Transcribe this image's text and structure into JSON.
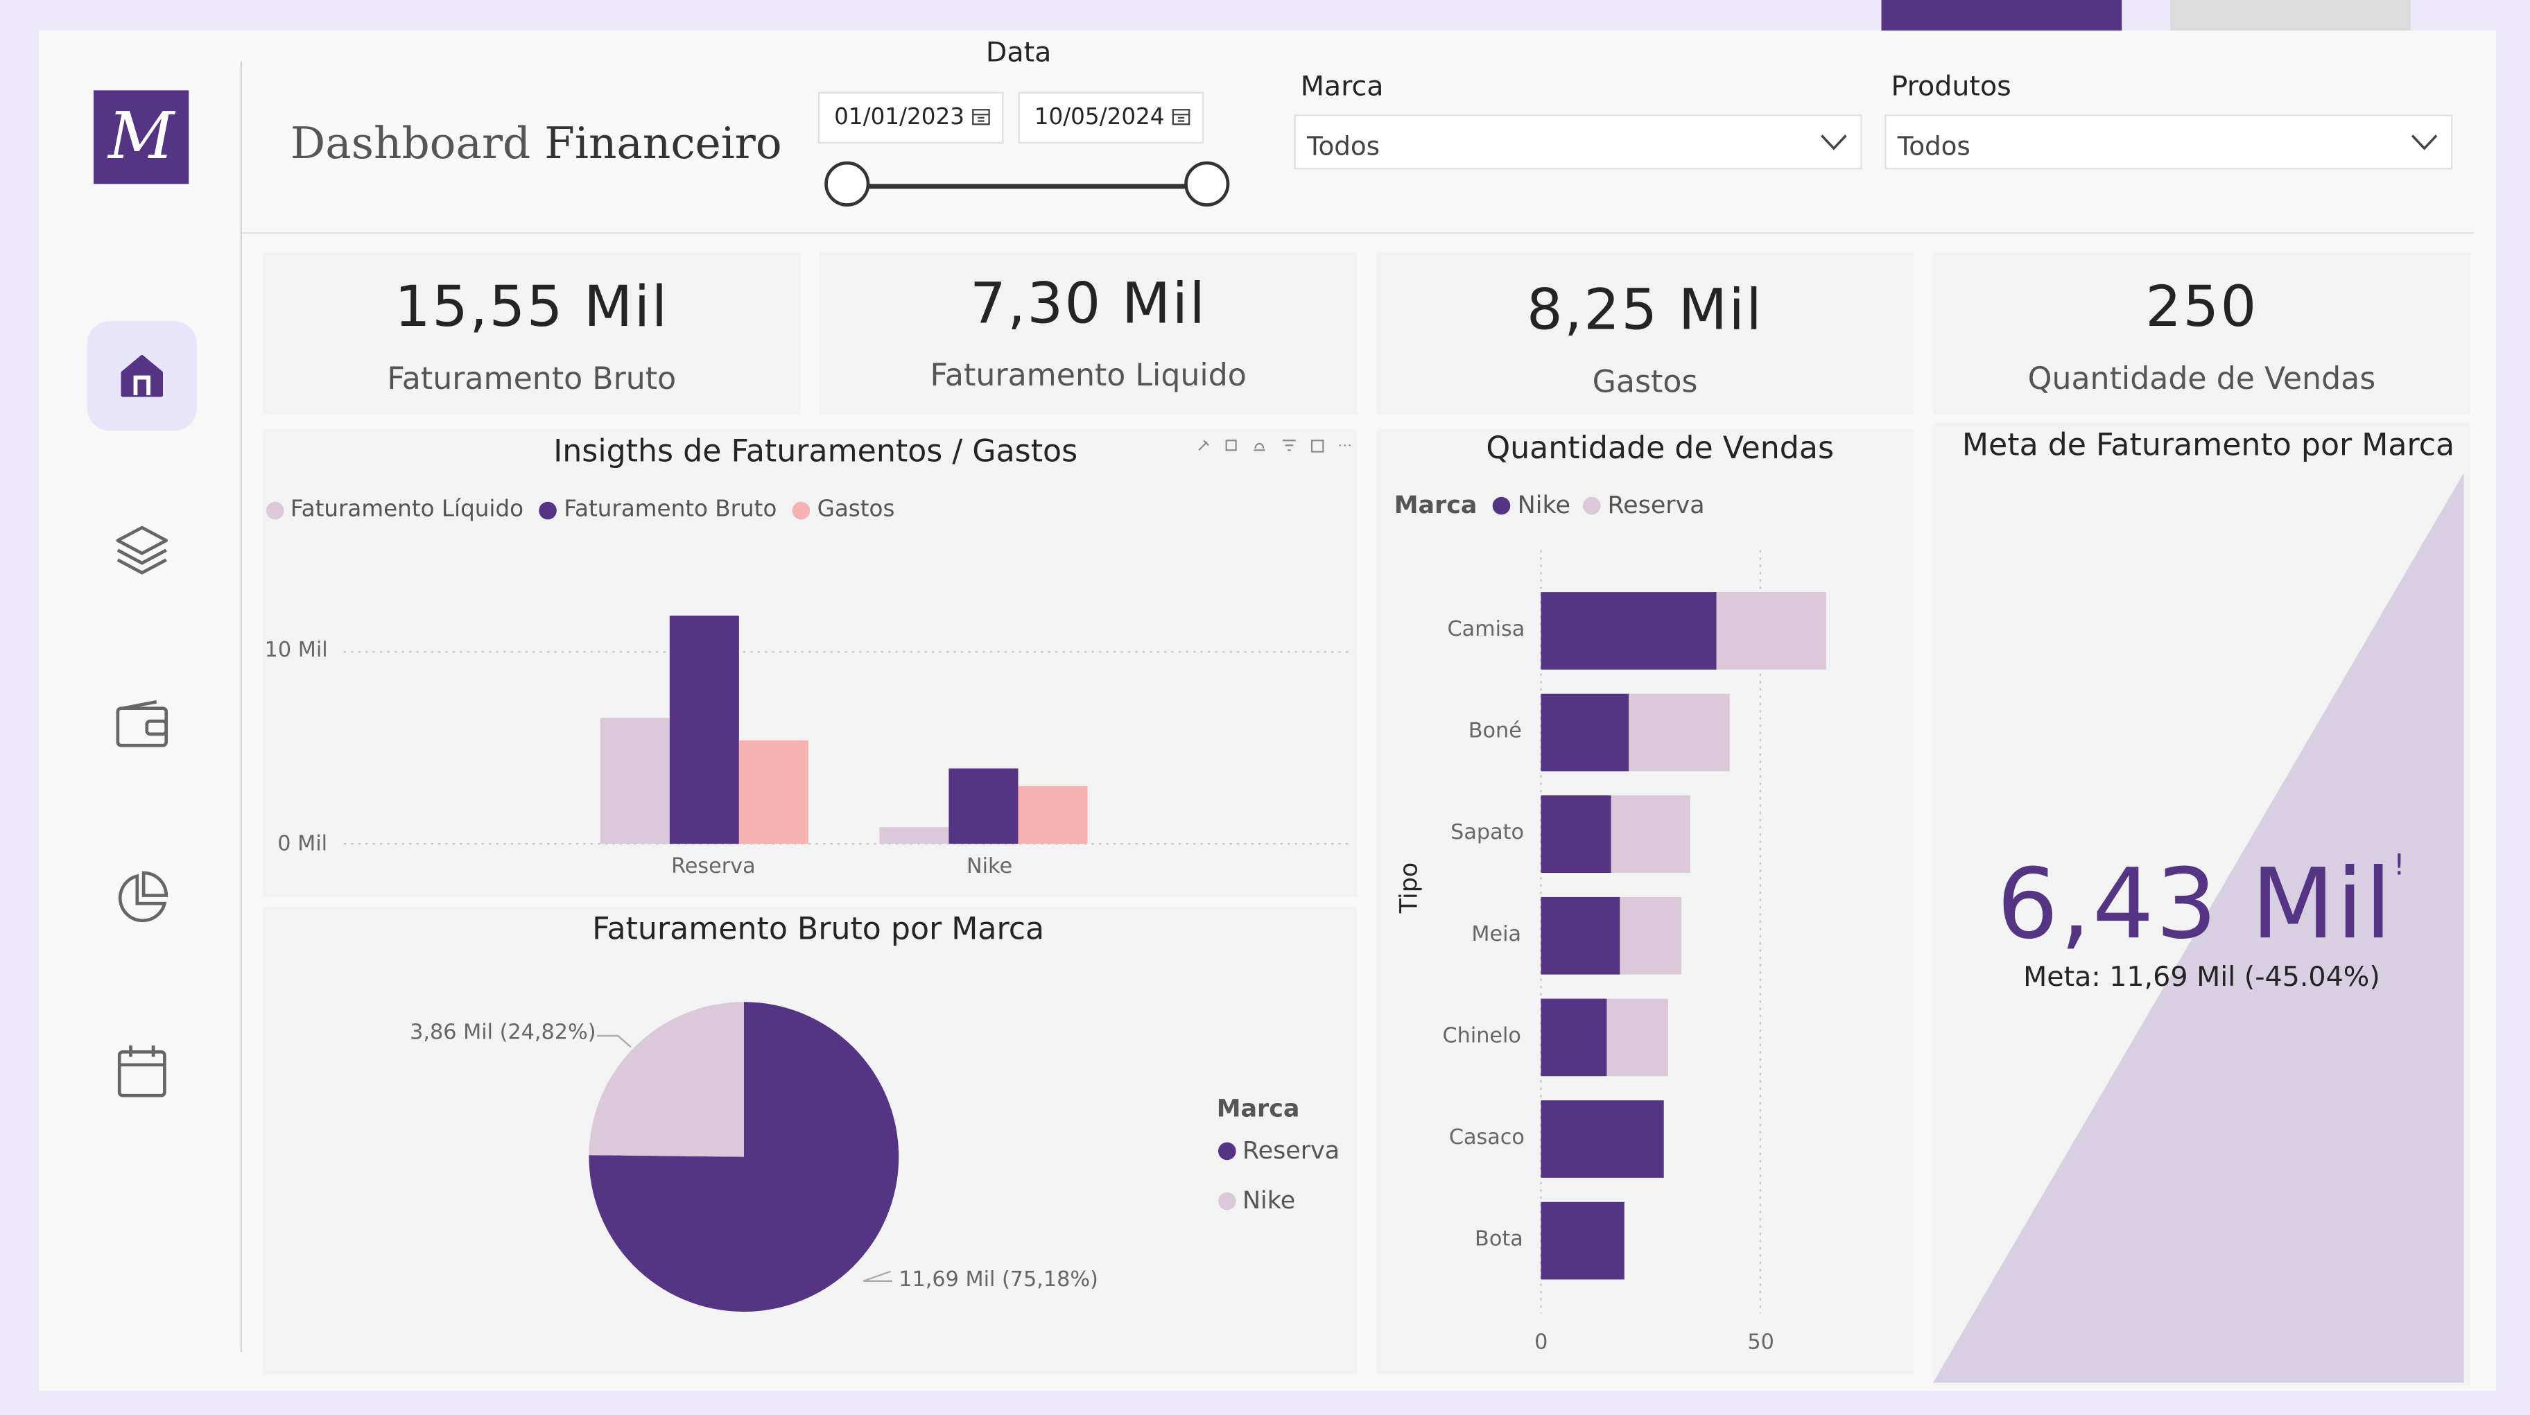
{
  "app": {
    "logo_letter": "M",
    "title_light": "Dashboard",
    "title_bold": "Financeiro",
    "nav_icons": [
      "home-icon",
      "layers-icon",
      "wallet-icon",
      "pie-chart-icon",
      "calendar-icon"
    ]
  },
  "filters": {
    "date_label": "Data",
    "date_start": "01/01/2023",
    "date_end": "10/05/2024",
    "brand_label": "Marca",
    "brand_value": "Todos",
    "product_label": "Produtos",
    "product_value": "Todos"
  },
  "kpis": [
    {
      "value": "15,55 Mil",
      "label": "Faturamento Bruto"
    },
    {
      "value": "7,30 Mil",
      "label": "Faturamento Liquido"
    },
    {
      "value": "8,25 Mil",
      "label": "Gastos"
    },
    {
      "value": "250",
      "label": "Quantidade de Vendas"
    }
  ],
  "colors": {
    "primary": "#553484",
    "light": "#dbc9d9",
    "salmon": "#f6b1b1"
  },
  "chart_data": [
    {
      "type": "bar",
      "title": "Insigths de Faturamentos / Gastos",
      "categories": [
        "Reserva",
        "Nike"
      ],
      "series": [
        {
          "name": "Faturamento Líquido",
          "color": "#dbc9d9",
          "values": [
            6.45,
            0.85
          ]
        },
        {
          "name": "Faturamento Bruto",
          "color": "#553484",
          "values": [
            11.69,
            3.86
          ]
        },
        {
          "name": "Gastos",
          "color": "#f6b1b1",
          "values": [
            5.3,
            2.95
          ]
        }
      ],
      "yticks": [
        "10 Mil",
        "0 Mil"
      ],
      "ylim": [
        0,
        12.5
      ]
    },
    {
      "type": "pie",
      "title": "Faturamento Bruto por Marca",
      "legend_title": "Marca",
      "slices": [
        {
          "name": "Reserva",
          "value": 11.69,
          "label": "11,69 Mil (75,18%)",
          "color": "#553484"
        },
        {
          "name": "Nike",
          "value": 3.86,
          "label": "3,86 Mil (24,82%)",
          "color": "#dbc9d9"
        }
      ]
    },
    {
      "type": "bar",
      "orientation": "horizontal",
      "stacked": true,
      "title": "Quantidade de Vendas",
      "legend_title": "Marca",
      "ylabel": "Tipo",
      "categories": [
        "Camisa",
        "Boné",
        "Sapato",
        "Meia",
        "Chinelo",
        "Casaco",
        "Bota"
      ],
      "series": [
        {
          "name": "Nike",
          "color": "#553484",
          "values": [
            40,
            20,
            16,
            18,
            15,
            28,
            19
          ]
        },
        {
          "name": "Reserva",
          "color": "#dbc9d9",
          "values": [
            25,
            23,
            18,
            14,
            14,
            0,
            0
          ]
        }
      ],
      "xticks": [
        "0",
        "50"
      ],
      "xlim": [
        0,
        65
      ]
    },
    {
      "type": "gauge",
      "title": "Meta de Faturamento por Marca",
      "value": 6.43,
      "target": 11.69,
      "value_label": "6,43 Mil",
      "target_label": "Meta: 11,69 Mil (-45.04%)"
    }
  ]
}
